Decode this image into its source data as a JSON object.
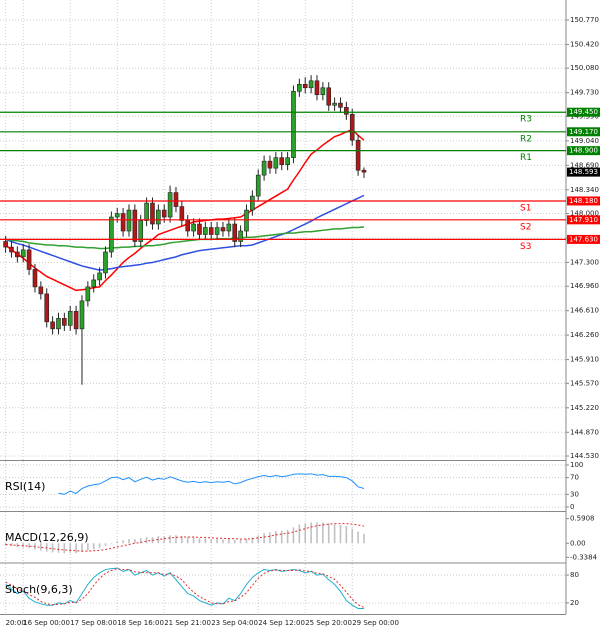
{
  "chart_data": [
    {
      "type": "candlestick",
      "categories": [
        "20:00",
        null,
        null,
        "16 Sep 00:00",
        null,
        null,
        null,
        null,
        null,
        null,
        null,
        "17 Sep 08:00",
        null,
        null,
        null,
        null,
        null,
        null,
        null,
        "18 Sep 16:00",
        null,
        null,
        null,
        null,
        null,
        null,
        null,
        "21 Sep 21:00",
        null,
        null,
        null,
        null,
        null,
        null,
        null,
        "23 Sep 04:00",
        null,
        null,
        null,
        null,
        null,
        null,
        null,
        "24 Sep 12:00",
        null,
        null,
        null,
        null,
        null,
        null,
        null,
        "25 Sep 20:00",
        null,
        null,
        null,
        null,
        null,
        null,
        null,
        "29 Sep 00:00",
        null,
        null
      ],
      "open": [
        147.6,
        147.52,
        147.45,
        147.38,
        147.48,
        147.2,
        146.95,
        146.85,
        146.45,
        146.35,
        146.5,
        146.4,
        146.6,
        146.35,
        146.75,
        146.95,
        147.05,
        147.15,
        147.45,
        147.95,
        148.0,
        147.75,
        148.05,
        147.6,
        147.9,
        148.15,
        147.85,
        148.05,
        147.95,
        148.3,
        148.1,
        147.9,
        147.75,
        147.85,
        147.7,
        147.8,
        147.7,
        147.8,
        147.75,
        147.85,
        147.6,
        147.75,
        148.05,
        148.25,
        148.55,
        148.75,
        148.65,
        148.8,
        148.7,
        148.8,
        149.75,
        149.85,
        149.8,
        149.9,
        149.7,
        149.8,
        149.55,
        149.58,
        149.52,
        149.42,
        149.05,
        148.62
      ],
      "high": [
        147.68,
        147.6,
        147.53,
        147.56,
        147.56,
        147.28,
        147.03,
        146.93,
        146.53,
        146.58,
        146.58,
        146.68,
        146.68,
        146.83,
        147.03,
        147.13,
        147.23,
        147.53,
        148.03,
        148.08,
        148.08,
        148.13,
        148.13,
        147.98,
        148.23,
        148.23,
        148.13,
        148.13,
        148.4,
        148.38,
        148.18,
        147.98,
        147.93,
        147.93,
        147.88,
        147.88,
        147.88,
        147.88,
        147.93,
        147.93,
        147.83,
        148.13,
        148.33,
        148.63,
        148.83,
        148.83,
        148.88,
        148.88,
        148.88,
        149.83,
        149.93,
        149.95,
        149.98,
        149.98,
        149.88,
        149.88,
        149.66,
        149.66,
        149.6,
        149.5,
        149.13,
        148.66
      ],
      "low": [
        147.44,
        147.37,
        147.3,
        147.3,
        147.12,
        146.87,
        146.77,
        146.37,
        146.27,
        146.27,
        146.32,
        146.32,
        146.27,
        145.55,
        146.67,
        146.87,
        146.97,
        147.07,
        147.37,
        147.87,
        147.67,
        147.67,
        147.52,
        147.52,
        147.82,
        147.77,
        147.77,
        147.87,
        147.87,
        148.02,
        147.82,
        147.67,
        147.67,
        147.62,
        147.62,
        147.62,
        147.62,
        147.67,
        147.67,
        147.52,
        147.52,
        147.67,
        147.97,
        148.17,
        148.47,
        148.57,
        148.57,
        148.62,
        148.62,
        148.72,
        149.67,
        149.72,
        149.72,
        149.62,
        149.62,
        149.47,
        149.47,
        149.44,
        149.34,
        148.97,
        148.54,
        148.51
      ],
      "close": [
        147.52,
        147.45,
        147.38,
        147.48,
        147.2,
        146.95,
        146.85,
        146.45,
        146.35,
        146.5,
        146.4,
        146.6,
        146.35,
        146.75,
        146.95,
        147.05,
        147.15,
        147.45,
        147.95,
        148.0,
        147.75,
        148.05,
        147.6,
        147.9,
        148.15,
        147.85,
        148.05,
        147.95,
        148.3,
        148.1,
        147.9,
        147.75,
        147.85,
        147.7,
        147.8,
        147.7,
        147.8,
        147.75,
        147.85,
        147.6,
        147.75,
        148.05,
        148.25,
        148.55,
        148.75,
        148.65,
        148.8,
        148.7,
        148.8,
        149.75,
        149.85,
        149.8,
        149.9,
        149.7,
        149.8,
        149.55,
        149.58,
        149.52,
        149.42,
        149.05,
        148.62,
        148.593
      ],
      "up_color": "#2ca02c",
      "down_color": "#b01818",
      "series": [
        {
          "color": "#ff0000",
          "values": [
            147.55,
            147.48,
            147.42,
            147.36,
            147.29,
            147.22,
            147.16,
            147.1,
            147.06,
            147.02,
            146.98,
            146.94,
            146.9,
            146.91,
            146.92,
            146.94,
            146.95,
            147.04,
            147.12,
            147.21,
            147.3,
            147.37,
            147.43,
            147.5,
            147.57,
            147.63,
            147.7,
            147.73,
            147.76,
            147.79,
            147.82,
            147.85,
            147.88,
            147.89,
            147.9,
            147.91,
            147.92,
            147.92,
            147.93,
            147.94,
            147.95,
            148.0,
            148.05,
            148.1,
            148.15,
            148.2,
            148.25,
            148.3,
            148.35,
            148.48,
            148.6,
            148.73,
            148.85,
            148.91,
            148.98,
            149.04,
            149.1,
            149.13,
            149.17,
            149.2,
            149.12,
            149.05
          ]
        },
        {
          "color": "#3050e0",
          "values": [
            147.63,
            147.6,
            147.57,
            147.55,
            147.52,
            147.49,
            147.46,
            147.43,
            147.4,
            147.37,
            147.34,
            147.31,
            147.28,
            147.25,
            147.23,
            147.21,
            147.19,
            147.2,
            147.21,
            147.23,
            147.24,
            147.25,
            147.26,
            147.27,
            147.29,
            147.3,
            147.32,
            147.34,
            147.36,
            147.38,
            147.41,
            147.43,
            147.45,
            147.47,
            147.48,
            147.49,
            147.5,
            147.51,
            147.52,
            147.53,
            147.54,
            147.54,
            147.55,
            147.58,
            147.61,
            147.64,
            147.67,
            147.7,
            147.73,
            147.77,
            147.81,
            147.85,
            147.89,
            147.94,
            147.98,
            148.02,
            148.06,
            148.1,
            148.14,
            148.18,
            148.22,
            148.26
          ]
        },
        {
          "color": "#30a030",
          "values": [
            147.63,
            147.62,
            147.61,
            147.6,
            147.58,
            147.57,
            147.56,
            147.55,
            147.55,
            147.54,
            147.54,
            147.53,
            147.52,
            147.52,
            147.51,
            147.51,
            147.5,
            147.5,
            147.51,
            147.51,
            147.52,
            147.52,
            147.53,
            147.53,
            147.54,
            147.54,
            147.55,
            147.56,
            147.58,
            147.59,
            147.6,
            147.61,
            147.62,
            147.63,
            147.63,
            147.63,
            147.64,
            147.64,
            147.64,
            147.65,
            147.65,
            147.66,
            147.66,
            147.67,
            147.68,
            147.69,
            147.7,
            147.71,
            147.72,
            147.72,
            147.73,
            147.74,
            147.74,
            147.75,
            147.76,
            147.77,
            147.78,
            147.78,
            147.79,
            147.8,
            147.8,
            147.81
          ]
        }
      ],
      "levels": [
        {
          "name": "R3",
          "value": 149.45,
          "label": "149.450",
          "color": "#008000"
        },
        {
          "name": "R2",
          "value": 149.17,
          "label": "149.170",
          "color": "#008000"
        },
        {
          "name": "R1",
          "value": 148.9,
          "label": "148.900",
          "color": "#008000"
        },
        {
          "name": "S1",
          "value": 148.18,
          "label": "148.180",
          "color": "#ff0000"
        },
        {
          "name": "S2",
          "value": 147.91,
          "label": "147.910",
          "color": "#ff0000"
        },
        {
          "name": "S3",
          "value": 147.63,
          "label": "147.630",
          "color": "#ff0000"
        }
      ],
      "last_price": 148.593,
      "ylim": [
        144.473,
        151.056
      ],
      "yticks": [
        {
          "value": 150.77,
          "label": "150.770"
        },
        {
          "value": 150.42,
          "label": "150.420"
        },
        {
          "value": 150.08,
          "label": "150.080"
        },
        {
          "value": 149.73,
          "label": "149.730"
        },
        {
          "value": 149.39,
          "label": "149.390"
        },
        {
          "value": 149.04,
          "label": "149.040"
        },
        {
          "value": 148.69,
          "label": "148.690"
        },
        {
          "value": 148.34,
          "label": "148.340"
        },
        {
          "value": 148.0,
          "label": "148.000"
        },
        {
          "value": 147.65,
          "label": "147.650"
        },
        {
          "value": 147.3,
          "label": "147.300"
        },
        {
          "value": 146.96,
          "label": "146.960"
        },
        {
          "value": 146.61,
          "label": "146.610"
        },
        {
          "value": 146.26,
          "label": "146.260"
        },
        {
          "value": 145.91,
          "label": "145.910"
        },
        {
          "value": 145.57,
          "label": "145.570"
        },
        {
          "value": 145.22,
          "label": "145.220"
        },
        {
          "value": 144.87,
          "label": "144.870"
        },
        {
          "value": 144.53,
          "label": "144.530"
        }
      ],
      "grid": true
    },
    {
      "type": "line",
      "title": "RSI(14)",
      "series": [
        {
          "color": "#1e90ff",
          "values": [
            null,
            null,
            null,
            null,
            null,
            null,
            null,
            null,
            null,
            33,
            30,
            38,
            32,
            44,
            50,
            53,
            55,
            62,
            70,
            71,
            65,
            70,
            60,
            66,
            71,
            64,
            68,
            66,
            72,
            67,
            62,
            59,
            61,
            58,
            60,
            58,
            60,
            59,
            61,
            55,
            58,
            64,
            68,
            72,
            75,
            72,
            75,
            72,
            74,
            78,
            79,
            78,
            79,
            76,
            77,
            73,
            73,
            72,
            70,
            62,
            48,
            44
          ]
        }
      ],
      "ylim": [
        -9.5,
        109.5
      ],
      "yticks": [
        100,
        70,
        30,
        0
      ],
      "grid": true
    },
    {
      "type": "bar",
      "title": "MACD(12,26,9)",
      "series": [
        {
          "kind": "bar",
          "color": "#c0c0c0",
          "values": [
            -0.05,
            -0.07,
            -0.09,
            -0.1,
            -0.12,
            -0.15,
            -0.17,
            -0.2,
            -0.22,
            -0.23,
            -0.24,
            -0.23,
            -0.24,
            -0.21,
            -0.18,
            -0.15,
            -0.12,
            -0.07,
            0.0,
            0.05,
            0.07,
            0.1,
            0.1,
            0.12,
            0.15,
            0.15,
            0.17,
            0.17,
            0.19,
            0.19,
            0.17,
            0.15,
            0.14,
            0.12,
            0.12,
            0.1,
            0.1,
            0.09,
            0.1,
            0.08,
            0.08,
            0.11,
            0.14,
            0.19,
            0.24,
            0.26,
            0.29,
            0.3,
            0.32,
            0.38,
            0.45,
            0.48,
            0.5,
            0.5,
            0.5,
            0.48,
            0.46,
            0.44,
            0.41,
            0.35,
            0.28,
            0.23
          ]
        },
        {
          "kind": "line",
          "dashed": true,
          "color": "#e03030",
          "values": [
            -0.03,
            -0.04,
            -0.05,
            -0.06,
            -0.07,
            -0.08,
            -0.1,
            -0.11,
            -0.13,
            -0.15,
            -0.16,
            -0.17,
            -0.18,
            -0.19,
            -0.19,
            -0.18,
            -0.17,
            -0.15,
            -0.12,
            -0.09,
            -0.06,
            -0.03,
            0.0,
            0.02,
            0.05,
            0.07,
            0.09,
            0.11,
            0.13,
            0.14,
            0.15,
            0.15,
            0.15,
            0.14,
            0.14,
            0.13,
            0.12,
            0.12,
            0.11,
            0.11,
            0.1,
            0.1,
            0.11,
            0.13,
            0.15,
            0.17,
            0.2,
            0.22,
            0.24,
            0.27,
            0.31,
            0.35,
            0.39,
            0.42,
            0.44,
            0.46,
            0.47,
            0.47,
            0.47,
            0.46,
            0.44,
            0.41
          ]
        }
      ],
      "ylim": [
        -0.45,
        0.75
      ],
      "yticks": [
        0.5908,
        {
          "value": 0,
          "label": "0.00"
        },
        -0.3384
      ],
      "grid": false
    },
    {
      "type": "line",
      "title": "Stoch(9,6,3)",
      "series": [
        {
          "color": "#20b0d0",
          "values": [
            60,
            50,
            40,
            45,
            30,
            22,
            18,
            15,
            15,
            20,
            18,
            25,
            20,
            40,
            60,
            75,
            85,
            92,
            94,
            95,
            88,
            92,
            80,
            85,
            90,
            80,
            85,
            78,
            85,
            70,
            55,
            40,
            35,
            25,
            20,
            15,
            20,
            18,
            30,
            25,
            40,
            60,
            75,
            85,
            92,
            90,
            92,
            88,
            90,
            92,
            90,
            85,
            88,
            80,
            82,
            70,
            60,
            45,
            25,
            15,
            8,
            8
          ]
        },
        {
          "color": "#e03030",
          "dashed": true,
          "values": [
            65,
            58,
            50,
            45,
            38,
            32,
            23,
            18,
            16,
            17,
            18,
            21,
            21,
            28,
            40,
            58,
            73,
            84,
            90,
            94,
            92,
            92,
            87,
            86,
            85,
            85,
            85,
            81,
            83,
            78,
            70,
            55,
            43,
            33,
            27,
            20,
            18,
            18,
            23,
            24,
            32,
            42,
            58,
            73,
            84,
            89,
            91,
            90,
            90,
            90,
            91,
            89,
            88,
            84,
            83,
            77,
            71,
            58,
            43,
            28,
            16,
            10
          ]
        }
      ],
      "ylim": [
        -4,
        104
      ],
      "yticks": [
        80,
        20
      ],
      "grid": true
    }
  ]
}
